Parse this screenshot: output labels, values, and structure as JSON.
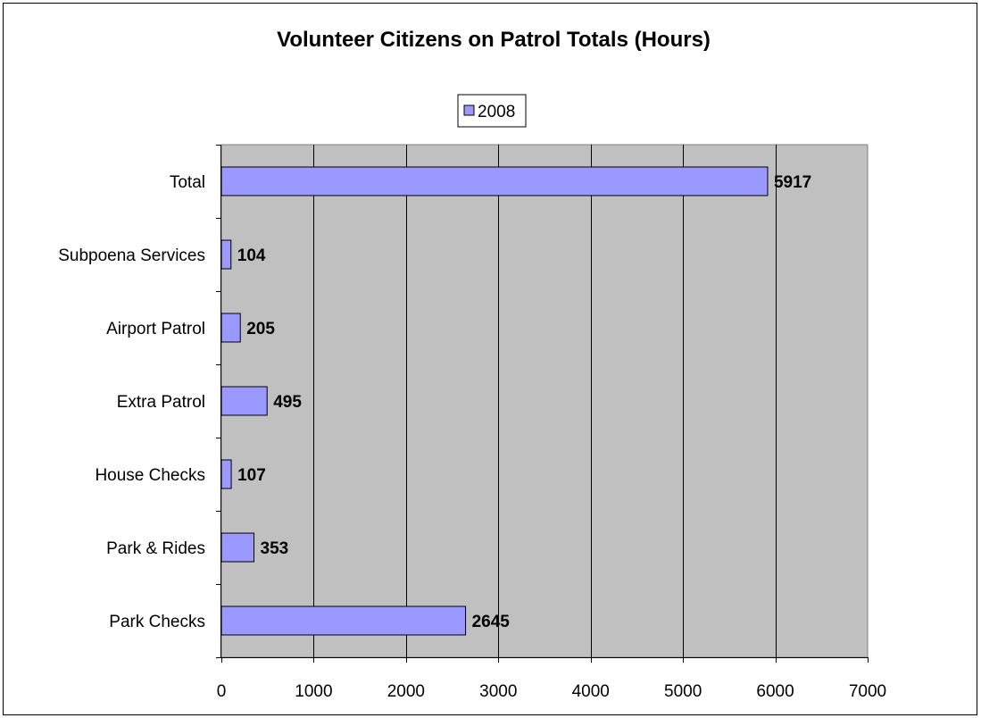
{
  "chart_data": {
    "type": "bar",
    "orientation": "horizontal",
    "title": "Volunteer Citizens on Patrol Totals (Hours)",
    "xlabel": "",
    "ylabel": "",
    "categories": [
      "Park Checks",
      "Park & Rides",
      "House Checks",
      "Extra Patrol",
      "Airport Patrol",
      "Subpoena Services",
      "Total"
    ],
    "series": [
      {
        "name": "2008",
        "values": [
          2645,
          353,
          107,
          495,
          205,
          104,
          5917
        ],
        "color": "#9999ff"
      }
    ],
    "xlim": [
      0,
      7000
    ],
    "xticks": [
      0,
      1000,
      2000,
      3000,
      4000,
      5000,
      6000,
      7000
    ],
    "grid": true,
    "plot_background": "#c0c0c0",
    "legend_position": "top-center",
    "data_labels": true
  }
}
